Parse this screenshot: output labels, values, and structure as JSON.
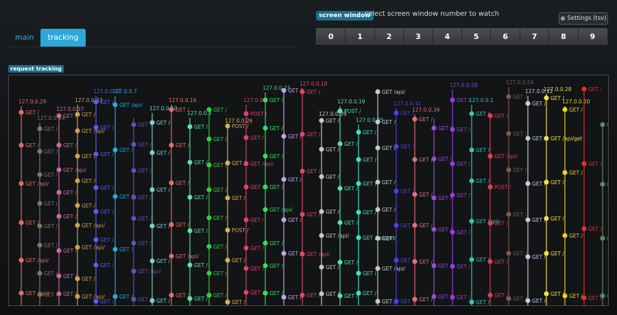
{
  "tabs": [
    {
      "label": "main",
      "active": false
    },
    {
      "label": "tracking",
      "active": true
    }
  ],
  "screen_window": {
    "label": "screen window",
    "hint": "select screen window number to watch",
    "buttons": [
      "0",
      "1",
      "2",
      "3",
      "4",
      "5",
      "6",
      "7",
      "8",
      "9"
    ]
  },
  "settings": {
    "label": "Settings (tsv)"
  },
  "request_tracking": {
    "label": "request tracking"
  },
  "tracks": [
    {
      "ip": "127.0.0.29",
      "color": "#e06f68",
      "reqs": [
        "GET /",
        "GET /",
        "GET /api/",
        "GET /",
        "GET /api/",
        "GET /api/"
      ]
    },
    {
      "ip": "127.0.0.14",
      "color": "#7d7a5e",
      "reqs": [
        "GET /",
        "GET /",
        "GET /",
        "GET /",
        "GET /",
        "GET /",
        "GET /",
        "GET /"
      ]
    },
    {
      "ip": "127.0.0.37",
      "color": "#c96aa0",
      "reqs": [
        "GET /",
        "GET /",
        "GET /api/",
        "GET /",
        "GET /",
        "GET /",
        "GET /",
        "GET /"
      ]
    },
    {
      "ip": "127.0.0.33",
      "color": "#c9a25e",
      "reqs": [
        "GET /",
        "GET /api/",
        "GET /",
        "GET /",
        "GET /",
        "GET /api/",
        "GET /api/",
        "GET /",
        "GET /api/"
      ]
    },
    {
      "ip": "127.0.0.11",
      "color": "#5a5ef0",
      "reqs": [
        "GET /",
        "GET /",
        "GET /",
        "GET /",
        "GET /",
        "GET /",
        "GET /",
        "GET /"
      ]
    },
    {
      "ip": "127.0.0.7",
      "color": "#2ea7d9",
      "reqs": [
        "GET /api/",
        "GET /",
        "GET /",
        "GET /",
        "GET /"
      ]
    },
    {
      "ip": "",
      "color": "#6a4fb0",
      "reqs": [
        "GET /",
        "GET /",
        "GET /",
        "GET /",
        "GET /",
        "GET /",
        "GET /api/",
        "GET /"
      ]
    },
    {
      "ip": "127.0.0.10",
      "color": "#7ad0c8",
      "reqs": [
        "GET /",
        "GET /",
        "GET /",
        "GET /",
        "GET /",
        "GET /"
      ]
    },
    {
      "ip": "127.0.0.16",
      "color": "#e06f68",
      "reqs": [
        "GET /",
        "GET /",
        "GET /",
        "GET /",
        "GET /api/",
        "GET /"
      ]
    },
    {
      "ip": "127.0.0.3",
      "color": "#60e0a0",
      "reqs": [
        "GET /",
        "GET /",
        "GET /",
        "GET /",
        "GET /",
        "GET /"
      ]
    },
    {
      "ip": "",
      "color": "#30d040",
      "reqs": [
        "GET /",
        "GET /",
        "GET /",
        "GET /",
        "GET /",
        "GET /",
        "GET /",
        "GET /"
      ]
    },
    {
      "ip": "127.0.0.26",
      "color": "#d8b060",
      "reqs": [
        "POST /",
        "GET /",
        "GET /",
        "POST /",
        "GET /",
        "GET /"
      ]
    },
    {
      "ip": "127.0.0.8",
      "color": "#e04070",
      "reqs": [
        "POST /",
        "GET /",
        "GET /api/",
        "GET /",
        "GET /",
        "GET /",
        "GET /",
        "GET /"
      ]
    },
    {
      "ip": "127.0.0.23",
      "color": "#30e060",
      "reqs": [
        "GET /",
        "GET /",
        "GET /",
        "GET /",
        "GET /api/",
        "GET /",
        "GET /",
        "GET /"
      ]
    },
    {
      "ip": "",
      "color": "#b8a8e8",
      "reqs": [
        "GET /",
        "GET /",
        "GET /",
        "GET /",
        "GET /",
        "GET /"
      ]
    },
    {
      "ip": "127.0.0.18",
      "color": "#e04868",
      "reqs": [
        "GET /",
        "GET /",
        "GET /",
        "GET /",
        "GET /api/",
        "GET /"
      ]
    },
    {
      "ip": "127.0.0.39",
      "color": "#c8c8c8",
      "reqs": [
        "GET /",
        "GET /",
        "GET /",
        "GET /",
        "GET /api/",
        "GET /",
        "GET /"
      ]
    },
    {
      "ip": "127.0.0.19",
      "color": "#60e0a0",
      "reqs": [
        "POST /",
        "GET /",
        "GET /",
        "GET /",
        "GET /",
        "GET /"
      ]
    },
    {
      "ip": "127.0.0.35",
      "color": "#40e0c0",
      "reqs": [
        "GET /",
        "GET /",
        "GET /",
        "GET /",
        "GET /api/get",
        "GET /",
        "GET /"
      ]
    },
    {
      "ip": "",
      "color": "#c8c8c8",
      "reqs": [
        "GET /api/",
        "GET /",
        "GET /",
        "GET /",
        "GET /",
        "GET /",
        "GET /api/",
        "GET /"
      ]
    },
    {
      "ip": "127.0.0.32",
      "color": "#5040e0",
      "reqs": [
        "GET /",
        "GET /",
        "GET /",
        "GET /",
        "GET /",
        "GET /"
      ]
    },
    {
      "ip": "127.0.0.34",
      "color": "#e07080",
      "reqs": [
        "GET /",
        "GET /",
        "GET /",
        "GET /",
        "GET /",
        "GET /"
      ]
    },
    {
      "ip": "",
      "color": "#9050d0",
      "reqs": [
        "GET /",
        "GET /",
        "GET /",
        "GET /",
        "GET /",
        "GET /"
      ]
    },
    {
      "ip": "127.0.0.28",
      "color": "#9040e0",
      "reqs": [
        "GET /",
        "GET /",
        "GET /",
        "GET /",
        "GET /",
        "GET /",
        "GET /"
      ]
    },
    {
      "ip": "127.0.0.1",
      "color": "#40c0b0",
      "reqs": [
        "GET /",
        "GET /",
        "GET /",
        "GET /api/",
        "GET /",
        "GET /"
      ]
    },
    {
      "ip": "",
      "color": "#e04050",
      "reqs": [
        "GET /",
        "GET /api/",
        "POST /",
        "GET /",
        "GET /",
        "GET /"
      ]
    },
    {
      "ip": "127.0.0.24",
      "color": "#805850",
      "reqs": [
        "GET /",
        "GET /",
        "GET /",
        "GET /",
        "GET /",
        "GET /"
      ]
    },
    {
      "ip": "127.0.0.12",
      "color": "#c8c8e8",
      "reqs": [
        "GET /",
        "GET /",
        "GET /",
        "GET /",
        "GET /",
        "GET /"
      ]
    },
    {
      "ip": "127.0.0.28",
      "color": "#f0e040",
      "reqs": [
        "GET /",
        "GET /api/get",
        "GET /",
        "GET /",
        "GET /",
        "GET /"
      ]
    },
    {
      "ip": "127.0.0.20",
      "color": "#f0d020",
      "reqs": [
        "GET /",
        "GET /",
        "GET /",
        "GET /"
      ]
    },
    {
      "ip": "",
      "color": "#e03030",
      "reqs": [
        "GET /",
        "GET /",
        "GET /",
        "GET /"
      ]
    },
    {
      "ip": "",
      "color": "#5a8a6a",
      "reqs": [
        "GET /",
        "GET /",
        "GET /",
        "GET /"
      ]
    }
  ]
}
